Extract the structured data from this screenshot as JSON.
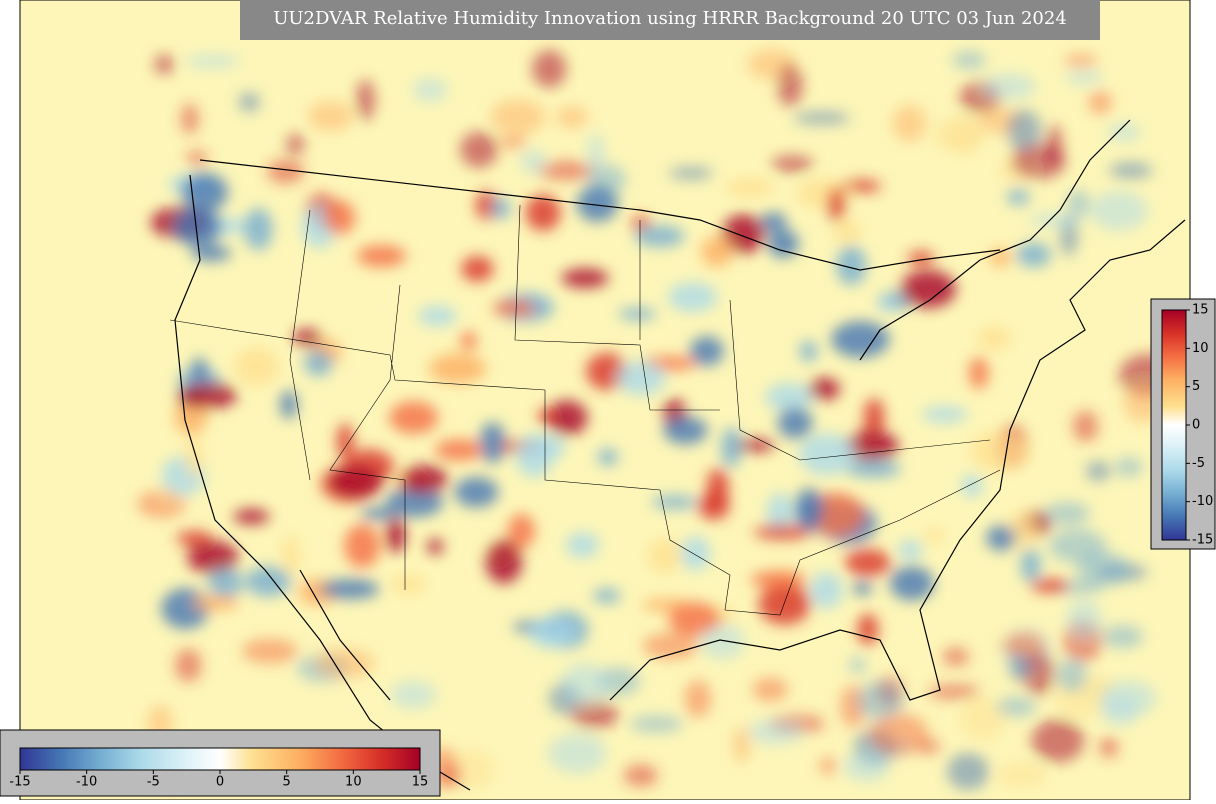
{
  "title": "UU2DVAR Relative Humidity Innovation using HRRR Background 20 UTC 03 Jun 2024",
  "colorbar_bottom": {
    "lim": [
      -15,
      15
    ],
    "ticks": [
      -15,
      -10,
      -5,
      0,
      5,
      10,
      15
    ]
  },
  "colorbar_right": {
    "lim": [
      -15,
      15
    ],
    "ticks": [
      15,
      10,
      5,
      0,
      -5,
      -10,
      -15
    ]
  }
}
